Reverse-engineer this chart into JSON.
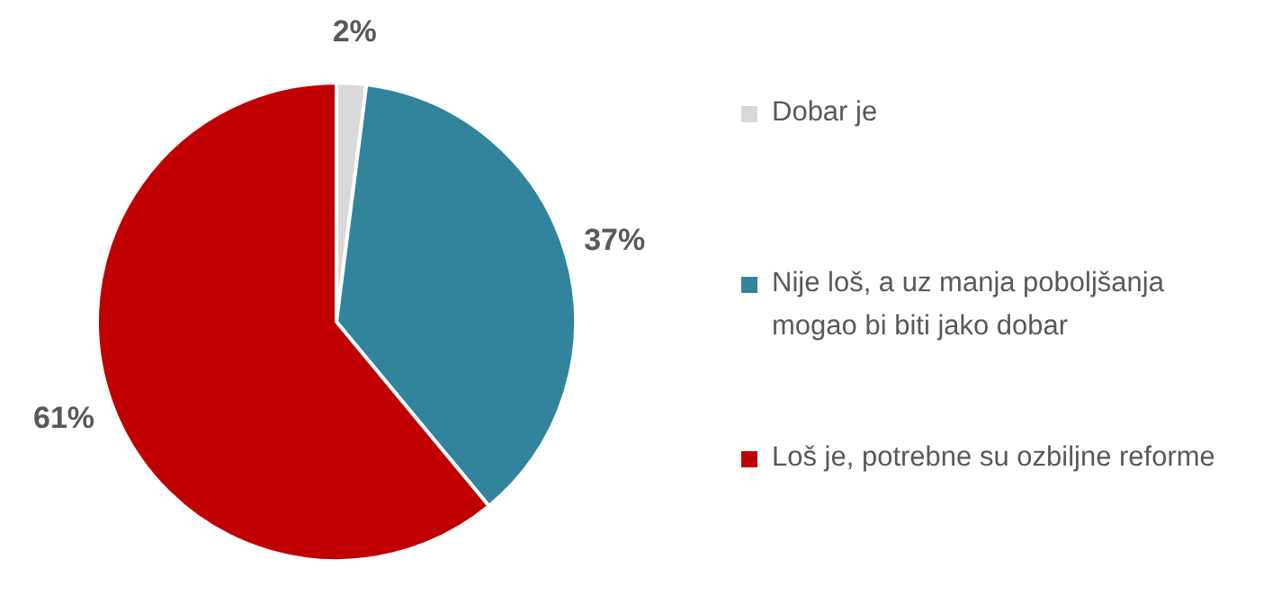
{
  "chart_data": {
    "type": "pie",
    "categories": [
      "Dobar je",
      "Nije loš, a uz manja poboljšanja mogao bi biti jako dobar",
      "Loš je, potrebne su ozbiljne reforme"
    ],
    "values": [
      2,
      37,
      61
    ],
    "colors": [
      "#d9d9d9",
      "#31849b",
      "#c00000"
    ],
    "value_labels": [
      "2%",
      "37%",
      "61%"
    ],
    "legend": "right"
  }
}
